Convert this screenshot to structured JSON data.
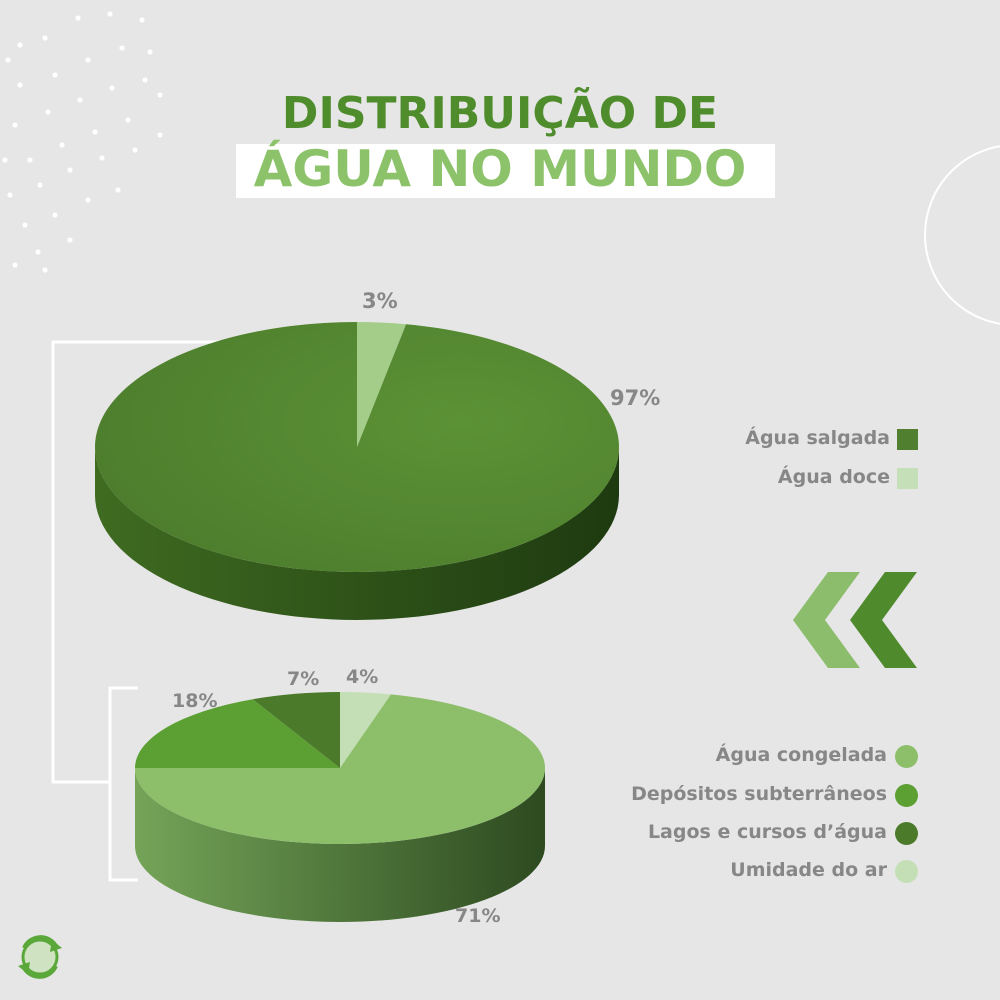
{
  "title": {
    "line1": "DISTRIBUIÇÃO DE",
    "line2": "ÁGUA NO MUNDO"
  },
  "colors": {
    "dark_green": "#4e8c2c",
    "light_green": "#8cc36a",
    "salt_water": "#4f7f2f",
    "fresh_water": "#b8d8a8",
    "frozen": "#8dbf6b",
    "groundwater": "#5c9f33",
    "lakes": "#4a7a2a",
    "air": "#c4dfb5",
    "label_gray": "#878787"
  },
  "icons": {
    "chevrons": "double-chevron-left-icon",
    "logo": "recycle-logo-icon"
  },
  "chart_data": [
    {
      "type": "pie",
      "labels": [
        "Água salgada",
        "Água doce"
      ],
      "values": [
        97,
        3
      ],
      "value_labels": [
        "97%",
        "3%"
      ],
      "legend": [
        "Água salgada",
        "Água doce"
      ],
      "legend_placement": "right"
    },
    {
      "type": "pie",
      "labels": [
        "Água congelada",
        "Depósitos subterrâneos",
        "Lagos e cursos d’água",
        "Umidade do ar"
      ],
      "values": [
        71,
        18,
        7,
        4
      ],
      "value_labels": [
        "71%",
        "18%",
        "7%",
        "4%"
      ],
      "legend": [
        "Água congelada",
        "Depósitos subterrâneos",
        "Lagos e cursos d’água",
        "Umidade do ar"
      ],
      "legend_placement": "right"
    }
  ]
}
